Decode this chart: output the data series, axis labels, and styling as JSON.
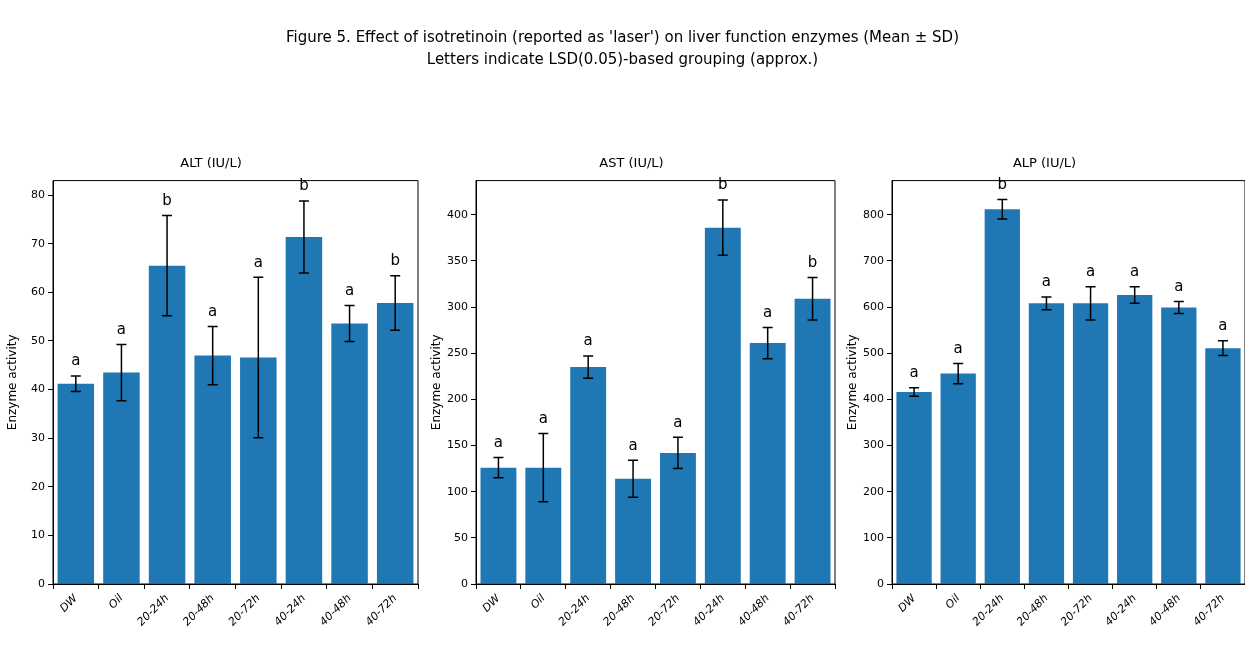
{
  "chart_data": [
    {
      "type": "other",
      "title": "Figure 5. Effect of isotretinoin (reported as 'laser') on liver function enzymes (Mean ± SD)",
      "subtitle": "Letters indicate LSD(0.05)-based grouping (approx.)"
    },
    {
      "type": "bar",
      "title": "ALT (IU/L)",
      "ylabel": "Enzyme activity",
      "categories": [
        "DW",
        "Oil",
        "20-24h",
        "20-48h",
        "20-72h",
        "40-24h",
        "40-48h",
        "40-72h"
      ],
      "color": "#1f77b4",
      "values": [
        41.2,
        43.5,
        65.5,
        47,
        46.6,
        71.4,
        53.6,
        57.8
      ],
      "errors": [
        1.6,
        5.8,
        10.3,
        6,
        16.5,
        7.4,
        3.7,
        5.6
      ],
      "ylim": [
        0,
        83
      ],
      "yticks": [
        0,
        10,
        20,
        30,
        40,
        50,
        60,
        70,
        80
      ],
      "annotations": [
        {
          "text": "a",
          "x": "DW",
          "y": 42.8
        },
        {
          "text": "a",
          "x": "Oil",
          "y": 49.3
        },
        {
          "text": "b",
          "x": "20-24h",
          "y": 75.8
        },
        {
          "text": "a",
          "x": "20-48h",
          "y": 53
        },
        {
          "text": "a",
          "x": "20-72h",
          "y": 63.1
        },
        {
          "text": "b",
          "x": "40-24h",
          "y": 78.8
        },
        {
          "text": "a",
          "x": "40-48h",
          "y": 57.3
        },
        {
          "text": "b",
          "x": "40-72h",
          "y": 63.4
        }
      ]
    },
    {
      "type": "bar",
      "title": "AST (IU/L)",
      "ylabel": "Enzyme activity",
      "categories": [
        "DW",
        "Oil",
        "20-24h",
        "20-48h",
        "20-72h",
        "40-24h",
        "40-48h",
        "40-72h"
      ],
      "color": "#1f77b4",
      "values": [
        126,
        126,
        235,
        114,
        142,
        386,
        261,
        309
      ],
      "errors": [
        11,
        37,
        12,
        20,
        17,
        30,
        17,
        23
      ],
      "ylim": [
        0,
        437
      ],
      "yticks": [
        0,
        50,
        100,
        150,
        200,
        250,
        300,
        350,
        400
      ],
      "annotations": [
        {
          "text": "a",
          "x": "DW",
          "y": 137
        },
        {
          "text": "a",
          "x": "Oil",
          "y": 163
        },
        {
          "text": "a",
          "x": "20-24h",
          "y": 247
        },
        {
          "text": "a",
          "x": "20-48h",
          "y": 134
        },
        {
          "text": "a",
          "x": "20-72h",
          "y": 159
        },
        {
          "text": "b",
          "x": "40-24h",
          "y": 416
        },
        {
          "text": "a",
          "x": "40-48h",
          "y": 278
        },
        {
          "text": "b",
          "x": "40-72h",
          "y": 332
        }
      ]
    },
    {
      "type": "bar",
      "title": "ALP (IU/L)",
      "ylabel": "Enzyme activity",
      "categories": [
        "DW",
        "Oil",
        "20-24h",
        "20-48h",
        "20-72h",
        "40-24h",
        "40-48h",
        "40-72h"
      ],
      "color": "#1f77b4",
      "values": [
        416,
        456,
        812,
        608,
        608,
        626,
        599,
        511
      ],
      "errors": [
        9,
        22,
        21,
        14,
        36,
        18,
        13,
        16
      ],
      "ylim": [
        0,
        874
      ],
      "yticks": [
        0,
        100,
        200,
        300,
        400,
        500,
        600,
        700,
        800
      ],
      "annotations": [
        {
          "text": "a",
          "x": "DW",
          "y": 425
        },
        {
          "text": "a",
          "x": "Oil",
          "y": 478
        },
        {
          "text": "b",
          "x": "20-24h",
          "y": 833
        },
        {
          "text": "a",
          "x": "20-48h",
          "y": 622
        },
        {
          "text": "a",
          "x": "20-72h",
          "y": 644
        },
        {
          "text": "a",
          "x": "40-24h",
          "y": 644
        },
        {
          "text": "a",
          "x": "40-48h",
          "y": 612
        },
        {
          "text": "a",
          "x": "40-72h",
          "y": 527
        }
      ]
    }
  ]
}
